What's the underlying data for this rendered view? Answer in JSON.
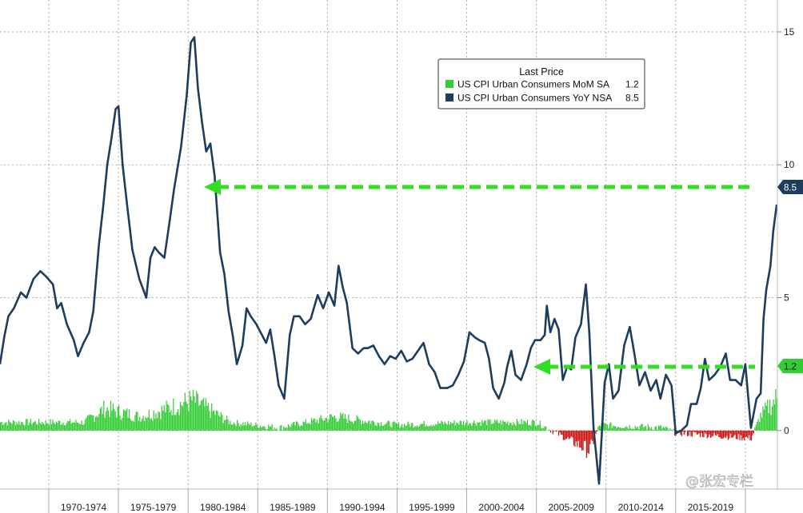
{
  "chart_data": {
    "type": "line",
    "title": "",
    "xlabel": "",
    "ylabel": "",
    "x_range": [
      1966.5,
      2022.3
    ],
    "y_range": [
      -2.2,
      16.2
    ],
    "y_ticks": [
      0,
      5,
      10,
      15
    ],
    "x_tick_labels": [
      "1970-1974",
      "1975-1979",
      "1980-1984",
      "1985-1989",
      "1990-1994",
      "1995-1999",
      "2000-2004",
      "2005-2009",
      "2010-2014",
      "2015-2019"
    ],
    "grid": true,
    "legend": {
      "title": "Last Price",
      "placement": "top-right",
      "entries": [
        {
          "label": "US CPI Urban Consumers MoM SA",
          "value": "1.2",
          "color": "#33cc33"
        },
        {
          "label": "US CPI Urban Consumers YoY NSA",
          "value": "8.5",
          "color": "#1c3d5e"
        }
      ]
    },
    "last_values": [
      {
        "series": "US CPI Urban Consumers YoY NSA",
        "label": "8.5",
        "value": 8.5
      },
      {
        "series": "US CPI Urban Consumers MoM SA",
        "label": "1.2",
        "value": 1.2
      }
    ],
    "series": [
      {
        "name": "US CPI Urban Consumers YoY NSA",
        "color": "#1c3d5e",
        "points": [
          [
            1966.5,
            2.5
          ],
          [
            1966.8,
            3.5
          ],
          [
            1967.1,
            4.3
          ],
          [
            1967.5,
            4.6
          ],
          [
            1968.0,
            5.2
          ],
          [
            1968.4,
            5.0
          ],
          [
            1968.9,
            5.7
          ],
          [
            1969.4,
            6.0
          ],
          [
            1969.8,
            5.8
          ],
          [
            1970.3,
            5.5
          ],
          [
            1970.6,
            4.6
          ],
          [
            1970.9,
            4.8
          ],
          [
            1971.3,
            4.0
          ],
          [
            1971.8,
            3.4
          ],
          [
            1972.1,
            2.8
          ],
          [
            1972.5,
            3.3
          ],
          [
            1972.9,
            3.7
          ],
          [
            1973.2,
            4.5
          ],
          [
            1973.6,
            7.0
          ],
          [
            1973.9,
            8.4
          ],
          [
            1974.2,
            10.0
          ],
          [
            1974.5,
            11.0
          ],
          [
            1974.8,
            12.1
          ],
          [
            1975.0,
            12.2
          ],
          [
            1975.3,
            10.0
          ],
          [
            1975.6,
            8.6
          ],
          [
            1976.0,
            6.8
          ],
          [
            1976.5,
            5.7
          ],
          [
            1977.0,
            5.0
          ],
          [
            1977.3,
            6.5
          ],
          [
            1977.6,
            6.9
          ],
          [
            1977.9,
            6.7
          ],
          [
            1978.3,
            6.5
          ],
          [
            1978.6,
            7.6
          ],
          [
            1979.0,
            9.1
          ],
          [
            1979.5,
            10.7
          ],
          [
            1979.9,
            12.6
          ],
          [
            1980.2,
            14.6
          ],
          [
            1980.45,
            14.8
          ],
          [
            1980.7,
            12.9
          ],
          [
            1981.0,
            11.6
          ],
          [
            1981.3,
            10.5
          ],
          [
            1981.6,
            10.8
          ],
          [
            1981.9,
            9.6
          ],
          [
            1982.3,
            6.7
          ],
          [
            1982.6,
            5.9
          ],
          [
            1982.9,
            4.5
          ],
          [
            1983.2,
            3.6
          ],
          [
            1983.5,
            2.5
          ],
          [
            1983.9,
            3.2
          ],
          [
            1984.2,
            4.6
          ],
          [
            1984.5,
            4.3
          ],
          [
            1984.9,
            4.0
          ],
          [
            1985.3,
            3.6
          ],
          [
            1985.6,
            3.3
          ],
          [
            1985.9,
            3.8
          ],
          [
            1986.2,
            2.8
          ],
          [
            1986.5,
            1.7
          ],
          [
            1986.9,
            1.2
          ],
          [
            1987.3,
            3.6
          ],
          [
            1987.6,
            4.3
          ],
          [
            1988.0,
            4.3
          ],
          [
            1988.4,
            4.0
          ],
          [
            1988.8,
            4.2
          ],
          [
            1989.3,
            5.1
          ],
          [
            1989.7,
            4.6
          ],
          [
            1990.1,
            5.2
          ],
          [
            1990.5,
            4.7
          ],
          [
            1990.8,
            6.2
          ],
          [
            1991.1,
            5.4
          ],
          [
            1991.4,
            4.8
          ],
          [
            1991.8,
            3.1
          ],
          [
            1992.2,
            2.9
          ],
          [
            1992.6,
            3.1
          ],
          [
            1992.9,
            3.1
          ],
          [
            1993.3,
            3.2
          ],
          [
            1993.7,
            2.8
          ],
          [
            1994.1,
            2.5
          ],
          [
            1994.5,
            2.8
          ],
          [
            1994.9,
            2.7
          ],
          [
            1995.3,
            3.0
          ],
          [
            1995.7,
            2.6
          ],
          [
            1996.1,
            2.7
          ],
          [
            1996.5,
            3.0
          ],
          [
            1996.9,
            3.3
          ],
          [
            1997.3,
            2.5
          ],
          [
            1997.7,
            2.2
          ],
          [
            1998.1,
            1.6
          ],
          [
            1998.6,
            1.6
          ],
          [
            1999.0,
            1.7
          ],
          [
            1999.4,
            2.1
          ],
          [
            1999.8,
            2.6
          ],
          [
            2000.2,
            3.7
          ],
          [
            2000.6,
            3.5
          ],
          [
            2000.9,
            3.4
          ],
          [
            2001.3,
            3.3
          ],
          [
            2001.6,
            2.7
          ],
          [
            2001.9,
            1.6
          ],
          [
            2002.3,
            1.2
          ],
          [
            2002.7,
            1.8
          ],
          [
            2002.9,
            2.4
          ],
          [
            2003.2,
            3.0
          ],
          [
            2003.5,
            2.1
          ],
          [
            2003.9,
            1.9
          ],
          [
            2004.3,
            2.5
          ],
          [
            2004.6,
            3.1
          ],
          [
            2004.9,
            3.4
          ],
          [
            2005.3,
            3.4
          ],
          [
            2005.6,
            3.6
          ],
          [
            2005.75,
            4.7
          ],
          [
            2006.0,
            3.7
          ],
          [
            2006.3,
            4.2
          ],
          [
            2006.6,
            3.8
          ],
          [
            2006.9,
            1.9
          ],
          [
            2007.2,
            2.4
          ],
          [
            2007.5,
            2.3
          ],
          [
            2007.8,
            3.5
          ],
          [
            2008.2,
            4.0
          ],
          [
            2008.55,
            5.5
          ],
          [
            2008.8,
            3.7
          ],
          [
            2009.1,
            0.1
          ],
          [
            2009.5,
            -2.0
          ],
          [
            2009.9,
            1.8
          ],
          [
            2010.2,
            2.5
          ],
          [
            2010.5,
            1.2
          ],
          [
            2010.9,
            1.5
          ],
          [
            2011.3,
            3.2
          ],
          [
            2011.7,
            3.9
          ],
          [
            2012.0,
            3.0
          ],
          [
            2012.4,
            1.7
          ],
          [
            2012.8,
            2.2
          ],
          [
            2013.2,
            1.5
          ],
          [
            2013.6,
            1.9
          ],
          [
            2013.9,
            1.2
          ],
          [
            2014.3,
            2.1
          ],
          [
            2014.7,
            1.7
          ],
          [
            2015.0,
            -0.1
          ],
          [
            2015.4,
            0.0
          ],
          [
            2015.8,
            0.2
          ],
          [
            2016.1,
            1.0
          ],
          [
            2016.5,
            1.0
          ],
          [
            2016.8,
            1.6
          ],
          [
            2017.1,
            2.7
          ],
          [
            2017.4,
            1.9
          ],
          [
            2017.8,
            2.1
          ],
          [
            2018.2,
            2.4
          ],
          [
            2018.6,
            2.9
          ],
          [
            2018.9,
            1.9
          ],
          [
            2019.3,
            1.9
          ],
          [
            2019.7,
            1.7
          ],
          [
            2020.0,
            2.5
          ],
          [
            2020.4,
            0.1
          ],
          [
            2020.8,
            1.2
          ],
          [
            2021.1,
            1.4
          ],
          [
            2021.3,
            4.2
          ],
          [
            2021.5,
            5.3
          ],
          [
            2021.8,
            6.2
          ],
          [
            2022.0,
            7.5
          ],
          [
            2022.25,
            8.5
          ]
        ]
      },
      {
        "name": "US CPI Urban Consumers MoM SA",
        "color": "#33cc33",
        "negative_color": "#cc1111",
        "start": 1966.5,
        "step": 0.0833,
        "note_anchors": [
          [
            1966.5,
            0.3
          ],
          [
            1972.5,
            0.3
          ],
          [
            1974.0,
            0.8
          ],
          [
            1976.5,
            0.5
          ],
          [
            1978.5,
            0.8
          ],
          [
            1980.3,
            1.1
          ],
          [
            1983.0,
            0.3
          ],
          [
            1986.5,
            0.1
          ],
          [
            1990.5,
            0.5
          ],
          [
            1995.0,
            0.2
          ],
          [
            2000.0,
            0.3
          ],
          [
            2005.0,
            0.3
          ],
          [
            2008.8,
            -0.8
          ],
          [
            2009.5,
            0.2
          ],
          [
            2014.0,
            0.1
          ],
          [
            2015.0,
            -0.1
          ],
          [
            2020.4,
            -0.3
          ],
          [
            2021.0,
            0.5
          ],
          [
            2022.25,
            1.2
          ]
        ],
        "values": []
      }
    ]
  },
  "watermark": "@张宏专栏"
}
